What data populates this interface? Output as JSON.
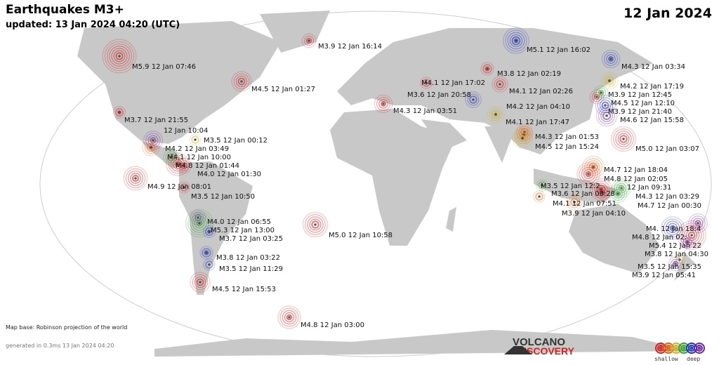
{
  "header": {
    "title": "Earthquakes M3+",
    "updated": "updated: 13 Jan 2024 04:20 (UTC)",
    "date": "12 Jan 2024"
  },
  "footer": {
    "map_base": "Map base: Robinson projection of the world",
    "generated": "generated in 0.3ms 13 Jan 2024 04:20",
    "logo_line1": "VOLCANO",
    "logo_line2": "DISCOVERY",
    "legend_shallow": "shallow",
    "legend_deep": "deep"
  },
  "colors": {
    "land": "#c8c8c8",
    "shallow": "#d42020",
    "orange": "#e06010",
    "yellow": "#c8b030",
    "green": "#30a030",
    "blue": "#2030c0",
    "deep": "#6a2aa0"
  },
  "legend_colors": [
    "#d42020",
    "#e06010",
    "#c8b030",
    "#30a030",
    "#2030c0",
    "#6a2aa0"
  ],
  "quakes": [
    {
      "label": "M5.9  12 Jan 07:46",
      "mag": 5.9,
      "color": "#d42020"
    },
    {
      "label": "M3.9  12 Jan 16:14",
      "mag": 3.9,
      "color": "#d42020"
    },
    {
      "label": "M5.1  12 Jan 16:02",
      "mag": 5.1,
      "color": "#2030c0"
    },
    {
      "label": "M4.3  12 Jan 03:34",
      "mag": 4.3,
      "color": "#2030c0"
    },
    {
      "label": "M4.5  12 Jan 01:27",
      "mag": 4.5,
      "color": "#d42020"
    },
    {
      "label": "M3.8  12 Jan 02:19",
      "mag": 3.8,
      "color": "#d42020"
    },
    {
      "label": "M4.1  12 Jan 02:26",
      "mag": 4.1,
      "color": "#d42020"
    },
    {
      "label": "M4.1  12 Jan 17:02",
      "mag": 4.1,
      "color": "#2030c0"
    },
    {
      "label": "M3.6  12 Jan 20:58",
      "mag": 3.6,
      "color": "#d42020"
    },
    {
      "label": "M4.3  12 Jan 03:51",
      "mag": 4.3,
      "color": "#d42020"
    },
    {
      "label": "M4.2  12 Jan 04:10",
      "mag": 4.2,
      "color": "#c8b030"
    },
    {
      "label": "M4.1  12 Jan 17:47",
      "mag": 4.1,
      "color": "#e06010"
    },
    {
      "label": "M4.3  12 Jan 01:53",
      "mag": 4.3,
      "color": "#e06010"
    },
    {
      "label": "M4.5  12 Jan 15:24",
      "mag": 4.5,
      "color": "#c8b030"
    },
    {
      "label": "M4.2  12 Jan 17:19",
      "mag": 4.2,
      "color": "#c8b030"
    },
    {
      "label": "M3.9  12 Jan 12:45",
      "mag": 3.9,
      "color": "#d42020"
    },
    {
      "label": "M4.5  12 Jan 12:10",
      "mag": 4.5,
      "color": "#2030c0"
    },
    {
      "label": "M3.9  12 Jan 21:40",
      "mag": 3.9,
      "color": "#30a030"
    },
    {
      "label": "M4.6  12 Jan 15:58",
      "mag": 4.6,
      "color": "#6a2aa0"
    },
    {
      "label": "M5.0  12 Jan 03:07",
      "mag": 5.0,
      "color": "#d42020"
    },
    {
      "label": "M3.7  12 Jan 21:55",
      "mag": 3.7,
      "color": "#d42020"
    },
    {
      "label": "12 Jan 10:04",
      "mag": 4.4,
      "color": "#6a2aa0"
    },
    {
      "label": "M3.5  12 Jan 00:12",
      "mag": 3.5,
      "color": "#c8b030"
    },
    {
      "label": "M4.2  12 Jan 03:49",
      "mag": 4.2,
      "color": "#e06010"
    },
    {
      "label": "M4.1  12 Jan 10:00",
      "mag": 4.1,
      "color": "#30a030"
    },
    {
      "label": "M4.8  12 Jan 01:44",
      "mag": 4.8,
      "color": "#d42020"
    },
    {
      "label": "M4.0  12 Jan 01:30",
      "mag": 4.0,
      "color": "#d42020"
    },
    {
      "label": "M4.9  12 Jan 08:01",
      "mag": 4.9,
      "color": "#d42020"
    },
    {
      "label": "M3.5  12 Jan 10:50",
      "mag": 3.5,
      "color": "#d42020"
    },
    {
      "label": "M4.0  12 Jan 06:55",
      "mag": 4.0,
      "color": "#6a2aa0"
    },
    {
      "label": "M5.3  12 Jan 13:00",
      "mag": 5.3,
      "color": "#30a030"
    },
    {
      "label": "M3.7  12 Jan 03:25",
      "mag": 3.7,
      "color": "#2030c0"
    },
    {
      "label": "M3.8  12 Jan 03:22",
      "mag": 3.8,
      "color": "#2030c0"
    },
    {
      "label": "M3.5  12 Jan 11:29",
      "mag": 3.5,
      "color": "#2030c0"
    },
    {
      "label": "M4.5  12 Jan 15:53",
      "mag": 4.5,
      "color": "#d42020"
    },
    {
      "label": "M4.8  12 Jan 03:00",
      "mag": 4.8,
      "color": "#d42020"
    },
    {
      "label": "M5.0  12 Jan 10:58",
      "mag": 5.0,
      "color": "#d42020"
    },
    {
      "label": "M4.7  12 Jan 18:04",
      "mag": 4.7,
      "color": "#e06010"
    },
    {
      "label": "M4.8  12 Jan 02:05",
      "mag": 4.8,
      "color": "#d42020"
    },
    {
      "label": "M3.5  12 Jan 12:2",
      "mag": 3.5,
      "color": "#30a030"
    },
    {
      "label": "12 Jan 09:31",
      "mag": 4.4,
      "color": "#30a030"
    },
    {
      "label": "M3.6  12 Jan 08:28",
      "mag": 3.6,
      "color": "#e06010"
    },
    {
      "label": "M4.3  12 Jan 03:29",
      "mag": 4.3,
      "color": "#30a030"
    },
    {
      "label": "M4.1  12 Jan 07:51",
      "mag": 4.1,
      "color": "#e06010"
    },
    {
      "label": "M4.7  12 Jan 00:30",
      "mag": 4.7,
      "color": "#d42020"
    },
    {
      "label": "M3.9  12 Jan 04:10",
      "mag": 3.9,
      "color": "#d42020"
    },
    {
      "label": "M4.  12 Jan 18:4",
      "mag": 4.4,
      "color": "#6a2aa0"
    },
    {
      "label": "M4.8  12 Jan 02:",
      "mag": 4.8,
      "color": "#2030c0"
    },
    {
      "label": "M5.4  12 Jan 22",
      "mag": 5.4,
      "color": "#d42020"
    },
    {
      "label": "M3.8  12 Jan 04:30",
      "mag": 3.8,
      "color": "#6a2aa0"
    },
    {
      "label": "M3.5  12 Jan 15:35",
      "mag": 3.5,
      "color": "#c8b030"
    },
    {
      "label": "M3.9  12 Jan 05:41",
      "mag": 3.9,
      "color": "#6a2aa0"
    }
  ]
}
